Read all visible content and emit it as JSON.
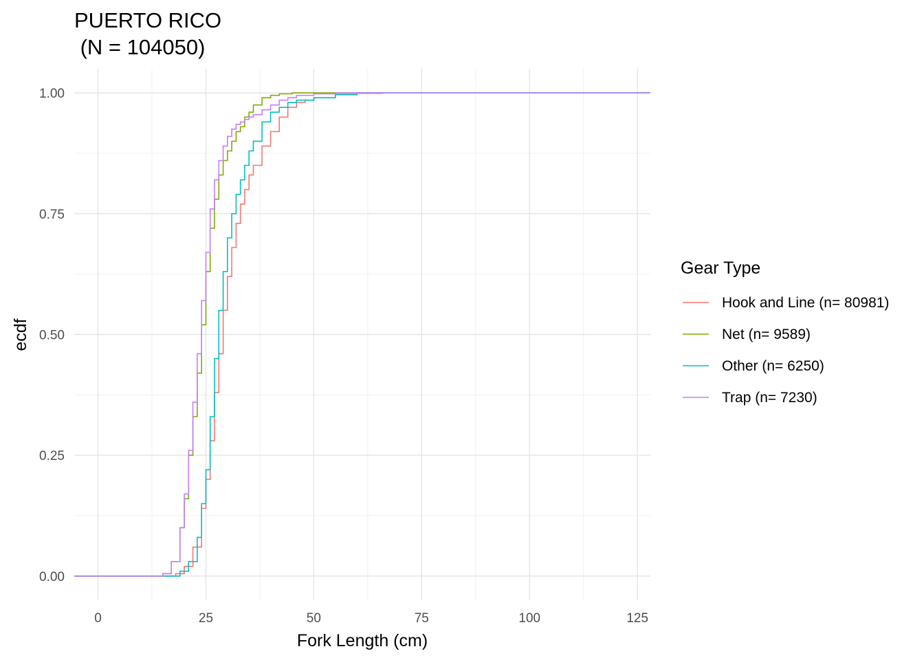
{
  "chart_data": {
    "type": "line",
    "title_line1": "PUERTO RICO",
    "title_line2": " (N = 104050)",
    "xlabel": "Fork Length (cm)",
    "ylabel": "ecdf",
    "xlim": [
      -5.5,
      128
    ],
    "ylim": [
      -0.05,
      1.05
    ],
    "x_ticks": [
      0,
      25,
      50,
      75,
      100,
      125
    ],
    "x_tick_labels": [
      "0",
      "25",
      "50",
      "75",
      "100",
      "125"
    ],
    "y_ticks": [
      0,
      0.25,
      0.5,
      0.75,
      1.0
    ],
    "y_tick_labels": [
      "0.00",
      "0.25",
      "0.50",
      "0.75",
      "1.00"
    ],
    "grid": true,
    "legend": {
      "title": "Gear Type",
      "position": "right",
      "entries": [
        {
          "label": "Hook and Line (n= 80981)",
          "color": "#F8766D"
        },
        {
          "label": "Net (n= 9589)",
          "color": "#7CAE00"
        },
        {
          "label": "Other (n= 6250)",
          "color": "#00BFC4"
        },
        {
          "label": "Trap (n= 7230)",
          "color": "#C77CFF"
        }
      ]
    },
    "series": [
      {
        "name": "Hook and Line (n= 80981)",
        "color": "#F8766D",
        "x": [
          -5.5,
          12,
          16,
          18,
          20,
          22,
          24,
          25,
          26,
          27,
          28,
          29,
          30,
          31,
          32,
          33,
          34,
          35,
          36,
          38,
          40,
          42,
          44,
          46,
          48,
          50,
          55,
          60,
          66,
          128
        ],
        "y": [
          0,
          0,
          0,
          0.005,
          0.02,
          0.06,
          0.14,
          0.2,
          0.28,
          0.38,
          0.46,
          0.55,
          0.62,
          0.68,
          0.73,
          0.77,
          0.8,
          0.83,
          0.85,
          0.89,
          0.92,
          0.95,
          0.97,
          0.98,
          0.985,
          0.99,
          0.996,
          0.999,
          1.0,
          1.0
        ]
      },
      {
        "name": "Net (n= 9589)",
        "color": "#7CAE00",
        "x": [
          -5.5,
          12,
          15,
          17,
          19,
          20,
          21,
          22,
          23,
          24,
          25,
          26,
          27,
          28,
          29,
          30,
          31,
          32,
          33,
          34,
          35,
          36,
          38,
          40,
          42,
          45,
          48,
          55,
          128
        ],
        "y": [
          0,
          0,
          0.005,
          0.03,
          0.1,
          0.16,
          0.25,
          0.33,
          0.42,
          0.52,
          0.63,
          0.72,
          0.78,
          0.83,
          0.86,
          0.88,
          0.9,
          0.92,
          0.93,
          0.95,
          0.96,
          0.975,
          0.99,
          0.995,
          0.998,
          1.0,
          1.0,
          1.0,
          1.0
        ]
      },
      {
        "name": "Other (n= 6250)",
        "color": "#00BFC4",
        "x": [
          -5.5,
          12,
          17,
          19,
          21,
          23,
          24,
          25,
          26,
          27,
          28,
          29,
          30,
          31,
          32,
          33,
          34,
          35,
          36,
          38,
          40,
          42,
          44,
          46,
          50,
          55,
          60,
          128
        ],
        "y": [
          0,
          0,
          0,
          0.01,
          0.03,
          0.08,
          0.15,
          0.22,
          0.33,
          0.45,
          0.55,
          0.63,
          0.7,
          0.75,
          0.79,
          0.82,
          0.85,
          0.88,
          0.9,
          0.94,
          0.96,
          0.97,
          0.98,
          0.985,
          0.99,
          0.997,
          1.0,
          1.0
        ]
      },
      {
        "name": "Trap (n= 7230)",
        "color": "#C77CFF",
        "x": [
          -5.5,
          12,
          15,
          17,
          19,
          20,
          21,
          22,
          23,
          24,
          25,
          26,
          27,
          28,
          29,
          30,
          31,
          32,
          33,
          34,
          35,
          36,
          38,
          40,
          42,
          44,
          46,
          50,
          55,
          60,
          128
        ],
        "y": [
          0,
          0,
          0.005,
          0.03,
          0.1,
          0.17,
          0.26,
          0.36,
          0.46,
          0.57,
          0.67,
          0.76,
          0.82,
          0.86,
          0.89,
          0.91,
          0.925,
          0.935,
          0.94,
          0.945,
          0.95,
          0.955,
          0.965,
          0.975,
          0.985,
          0.99,
          0.995,
          0.998,
          1.0,
          1.0,
          1.0
        ]
      }
    ]
  }
}
